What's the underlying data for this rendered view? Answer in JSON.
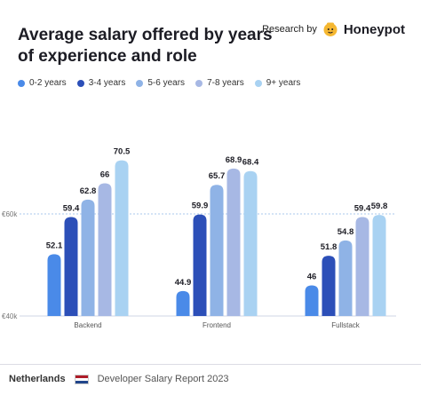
{
  "header": {
    "title": "Average salary offered by years of experience and role",
    "research_label": "Research by",
    "brand_name": "Honeypot"
  },
  "footer": {
    "country": "Netherlands",
    "report": "Developer Salary Report 2023"
  },
  "chart_data": {
    "type": "bar",
    "title": "Average salary offered by years of experience and role",
    "xlabel": "",
    "ylabel": "",
    "categories": [
      "Backend",
      "Frontend",
      "Fullstack"
    ],
    "series": [
      {
        "name": "0-2 years",
        "color": "#4a8ae8",
        "values": [
          52.1,
          44.9,
          46
        ]
      },
      {
        "name": "3-4 years",
        "color": "#2c4fb8",
        "values": [
          59.4,
          59.9,
          51.8
        ]
      },
      {
        "name": "5-6 years",
        "color": "#8fb3e6",
        "values": [
          62.8,
          65.7,
          54.8
        ]
      },
      {
        "name": "7-8 years",
        "color": "#a7b8e4",
        "values": [
          66,
          68.9,
          59.4
        ]
      },
      {
        "name": "9+ years",
        "color": "#a9d2f2",
        "values": [
          70.5,
          68.4,
          59.8
        ]
      }
    ],
    "ylim": [
      40,
      80
    ],
    "yticks": [
      {
        "value": 40,
        "label": "€40k"
      },
      {
        "value": 60,
        "label": "€60k"
      }
    ],
    "legend_position": "top-left",
    "grid": true
  }
}
